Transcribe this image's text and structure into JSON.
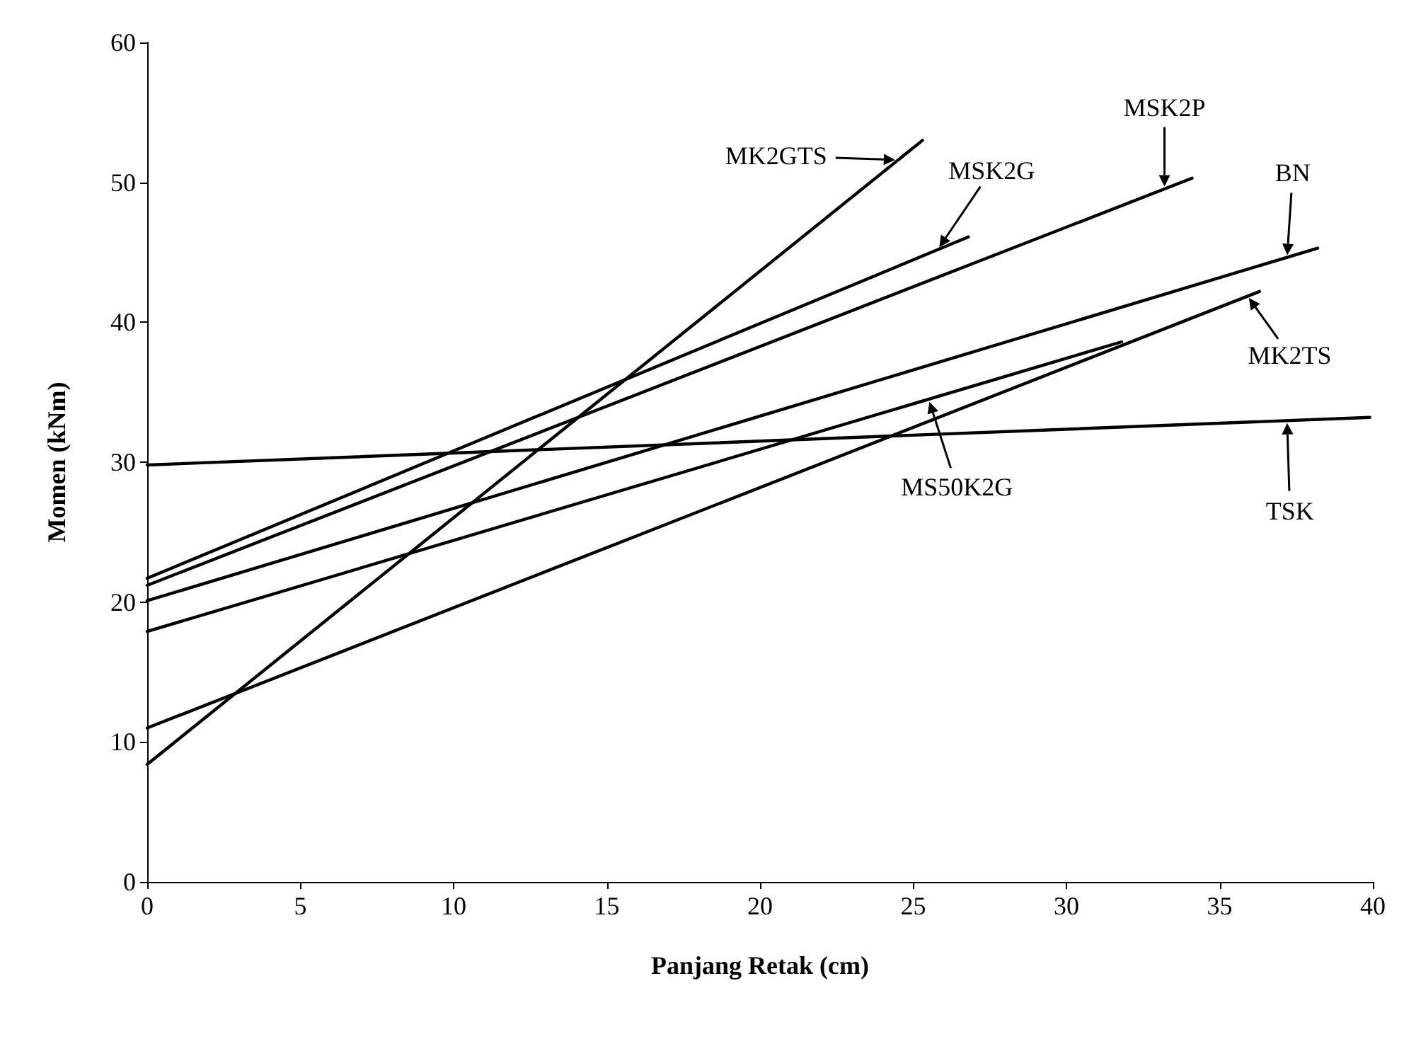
{
  "chart_data": {
    "type": "line",
    "xlabel": "Panjang Retak (cm)",
    "ylabel": "Momen (kNm)",
    "xlim": [
      0,
      40
    ],
    "ylim": [
      0,
      60
    ],
    "xticks": [
      0,
      5,
      10,
      15,
      20,
      25,
      30,
      35,
      40
    ],
    "yticks": [
      0,
      10,
      20,
      30,
      40,
      50,
      60
    ],
    "grid": false,
    "marker": "none",
    "line_style": "solid",
    "series": [
      {
        "color": "#000000",
        "x": [
          0,
          25.3
        ],
        "values": [
          8.4,
          53.0
        ]
      },
      {
        "color": "#000000",
        "x": [
          0,
          26.8
        ],
        "values": [
          21.7,
          46.1
        ]
      },
      {
        "color": "#000000",
        "x": [
          0,
          34.1
        ],
        "values": [
          21.2,
          50.3
        ]
      },
      {
        "color": "#000000",
        "x": [
          0,
          38.2
        ],
        "values": [
          20.1,
          45.3
        ]
      },
      {
        "color": "#000000",
        "x": [
          0,
          36.3
        ],
        "values": [
          11.0,
          42.2
        ]
      },
      {
        "color": "#000000",
        "x": [
          0,
          31.8
        ],
        "values": [
          17.9,
          38.6
        ]
      },
      {
        "color": "#000000",
        "x": [
          0,
          39.9
        ],
        "values": [
          29.8,
          33.2
        ]
      }
    ],
    "annotations": [
      {
        "text": "MK2GTS",
        "x": 24.5,
        "y": 51.6
      },
      {
        "text": "MSK2G",
        "x": 25.8,
        "y": 45.2
      },
      {
        "text": "MSK2P",
        "x": 33.2,
        "y": 49.5
      },
      {
        "text": "BN",
        "x": 37.2,
        "y": 44.6
      },
      {
        "text": "MK2TS",
        "x": 35.9,
        "y": 41.9
      },
      {
        "text": "TSK",
        "x": 37.2,
        "y": 33.0
      },
      {
        "text": "MS50K2G",
        "x": 25.5,
        "y": 34.5
      }
    ]
  }
}
